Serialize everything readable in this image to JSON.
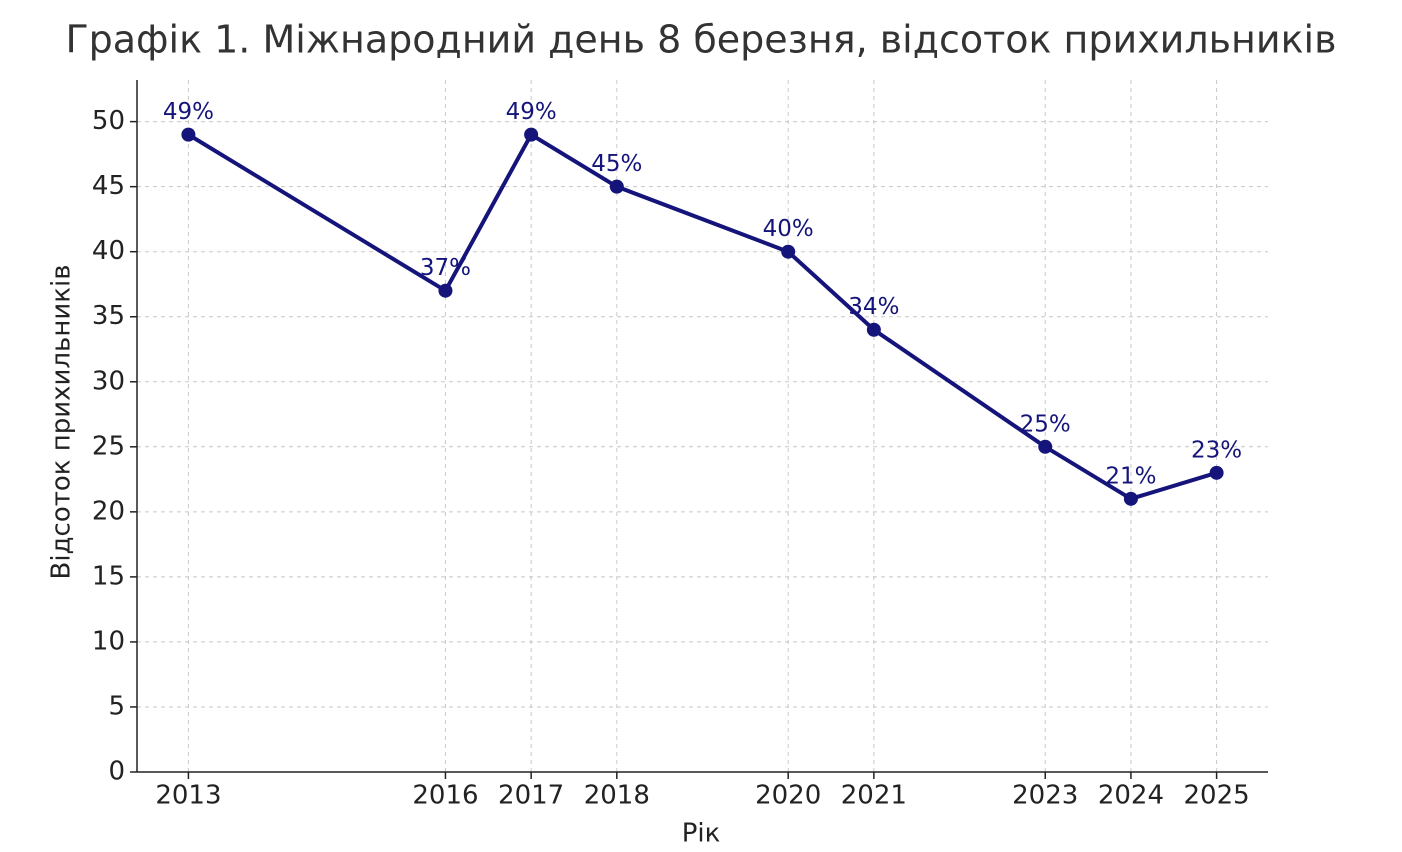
{
  "chart_data": {
    "type": "line",
    "title": "Графік 1. Міжнародний день 8 березня, відсоток прихильників",
    "x_label": "Рік",
    "y_label": "Відсоток прихильників",
    "x": [
      2013,
      2016,
      2017,
      2018,
      2020,
      2021,
      2023,
      2024,
      2025
    ],
    "series": [
      {
        "name": "Відсоток прихильників",
        "color": "#14147a",
        "values": [
          49,
          37,
          49,
          45,
          40,
          34,
          25,
          21,
          23
        ],
        "value_labels": [
          "49%",
          "37%",
          "49%",
          "45%",
          "40%",
          "34%",
          "25%",
          "21%",
          "23%"
        ]
      }
    ],
    "xlim": [
      2012.4,
      2025.6
    ],
    "xticks": [
      2013,
      2016,
      2017,
      2018,
      2020,
      2021,
      2023,
      2024,
      2025
    ],
    "ylim": [
      0,
      53.2
    ],
    "yticks": [
      0,
      5,
      10,
      15,
      20,
      25,
      30,
      35,
      40,
      45,
      50
    ],
    "grid": true
  }
}
